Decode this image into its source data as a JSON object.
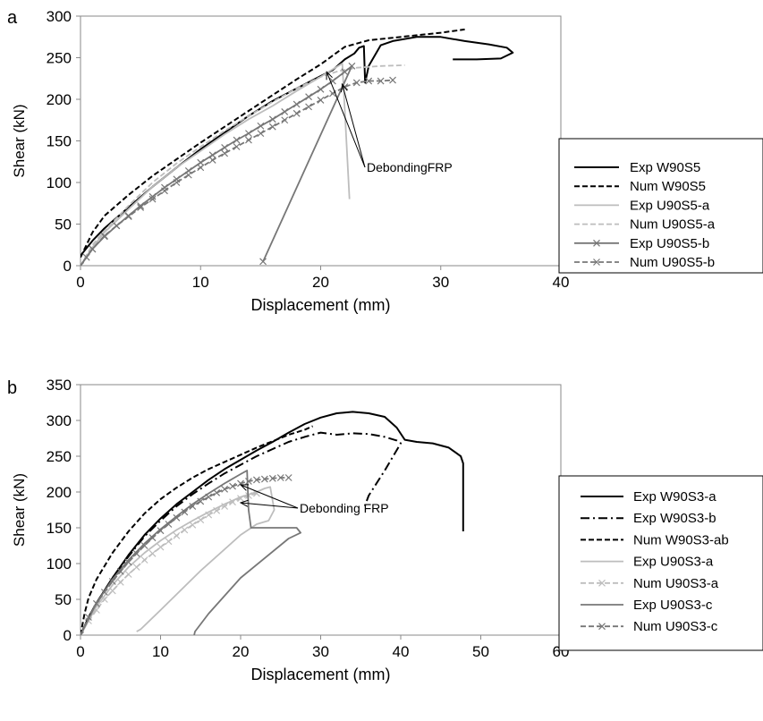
{
  "chart_data": [
    {
      "panel_label": "a",
      "type": "line",
      "xlabel": "Displacement (mm)",
      "ylabel": "Shear (kN)",
      "xlim": [
        0,
        40
      ],
      "ylim": [
        0,
        300
      ],
      "xticks": [
        0,
        10,
        20,
        30,
        40
      ],
      "yticks": [
        0,
        50,
        100,
        150,
        200,
        250,
        300
      ],
      "annotation": {
        "text": "DebondingFRP",
        "targets": [
          [
            20.5,
            233
          ],
          [
            21.8,
            218
          ]
        ]
      },
      "legend_position": "right",
      "series": [
        {
          "name": "Exp W90S5",
          "color": "#000000",
          "dash": "solid",
          "marker": "none",
          "x": [
            0,
            1,
            2,
            4,
            6,
            8,
            10,
            12,
            14,
            16,
            18,
            20,
            21,
            22,
            22.8,
            23.2,
            23.6,
            23.7,
            24,
            25,
            26,
            28,
            30,
            32,
            34,
            35.5,
            36,
            35,
            33,
            31
          ],
          "y": [
            12,
            30,
            45,
            70,
            95,
            118,
            140,
            160,
            180,
            198,
            213,
            228,
            235,
            248,
            255,
            262,
            264,
            220,
            240,
            265,
            270,
            275,
            275,
            270,
            266,
            262,
            256,
            249,
            248,
            248
          ]
        },
        {
          "name": "Num W90S5",
          "color": "#000000",
          "dash": "dashed",
          "marker": "none",
          "x": [
            0,
            0.5,
            1,
            2,
            4,
            6,
            8,
            10,
            12,
            14,
            16,
            18,
            20,
            22,
            24,
            26,
            28,
            30,
            32
          ],
          "y": [
            10,
            25,
            40,
            60,
            85,
            108,
            128,
            148,
            167,
            186,
            205,
            224,
            242,
            263,
            271,
            274,
            277,
            280,
            284
          ]
        },
        {
          "name": "Exp U90S5-a",
          "color": "#bdbdbd",
          "dash": "solid",
          "marker": "none",
          "x": [
            0,
            1,
            2,
            4,
            6,
            8,
            10,
            12,
            14,
            16,
            18,
            20,
            21,
            21.8,
            22.4
          ],
          "y": [
            0,
            22,
            40,
            68,
            95,
            118,
            138,
            158,
            176,
            192,
            210,
            227,
            236,
            243,
            80
          ]
        },
        {
          "name": "Num U90S5-a",
          "color": "#bdbdbd",
          "dash": "dashed",
          "marker": "none",
          "x": [
            0,
            1,
            2,
            4,
            6,
            8,
            10,
            12,
            14,
            16,
            18,
            20,
            21.5,
            23,
            25,
            27
          ],
          "y": [
            0,
            25,
            42,
            72,
            100,
            123,
            143,
            162,
            180,
            197,
            213,
            227,
            234,
            238,
            240,
            241
          ]
        },
        {
          "name": "Exp U90S5-b",
          "color": "#777777",
          "dash": "solid",
          "marker": "x",
          "x": [
            0,
            0.5,
            1,
            2,
            3,
            4,
            5,
            6,
            7,
            8,
            9,
            10,
            11,
            12,
            13,
            14,
            15,
            16,
            17,
            18,
            19,
            20,
            21,
            22,
            22.6,
            15.2
          ],
          "y": [
            0,
            10,
            20,
            35,
            48,
            60,
            72,
            83,
            94,
            104,
            114,
            124,
            133,
            142,
            151,
            159,
            168,
            176,
            185,
            194,
            203,
            212,
            222,
            233,
            240,
            5
          ]
        },
        {
          "name": "Num U90S5-b",
          "color": "#777777",
          "dash": "dashed",
          "marker": "x",
          "x": [
            0,
            1,
            2,
            3,
            4,
            5,
            6,
            7,
            8,
            9,
            10,
            11,
            12,
            13,
            14,
            15,
            16,
            17,
            18,
            19,
            20,
            21,
            22,
            23,
            24,
            25,
            26
          ],
          "y": [
            0,
            20,
            36,
            48,
            59,
            70,
            80,
            90,
            100,
            109,
            118,
            127,
            135,
            143,
            151,
            159,
            167,
            175,
            183,
            191,
            199,
            207,
            215,
            220,
            222,
            222,
            223
          ]
        }
      ]
    },
    {
      "panel_label": "b",
      "type": "line",
      "xlabel": "Displacement (mm)",
      "ylabel": "Shear (kN)",
      "xlim": [
        0,
        60
      ],
      "ylim": [
        0,
        350
      ],
      "xticks": [
        0,
        10,
        20,
        30,
        40,
        50,
        60
      ],
      "yticks": [
        0,
        50,
        100,
        150,
        200,
        250,
        300,
        350
      ],
      "annotation": {
        "text": "Debonding FRP",
        "targets": [
          [
            20,
            210
          ],
          [
            20,
            185
          ]
        ]
      },
      "legend_position": "right",
      "series": [
        {
          "name": "Exp W90S3-a",
          "color": "#000000",
          "dash": "solid",
          "marker": "none",
          "x": [
            0,
            1,
            2,
            4,
            6,
            8,
            10,
            12,
            14,
            16,
            18,
            20,
            22,
            24,
            26,
            28,
            30,
            32,
            34,
            36,
            38,
            39.5,
            40.5,
            42,
            44,
            46,
            47.5,
            47.8,
            47.8
          ],
          "y": [
            0,
            25,
            45,
            80,
            112,
            140,
            163,
            183,
            200,
            217,
            232,
            245,
            258,
            270,
            283,
            295,
            304,
            310,
            312,
            310,
            305,
            290,
            273,
            270,
            268,
            262,
            250,
            240,
            145
          ]
        },
        {
          "name": "Exp W90S3-b",
          "color": "#000000",
          "dash": "dashdot",
          "marker": "none",
          "x": [
            0,
            2,
            4,
            6,
            8,
            10,
            12,
            14,
            16,
            18,
            20,
            22,
            24,
            26,
            28,
            30,
            32,
            34,
            36,
            38,
            39.5,
            40,
            38,
            36,
            35.5
          ],
          "y": [
            0,
            45,
            80,
            110,
            138,
            160,
            180,
            197,
            212,
            226,
            238,
            250,
            260,
            270,
            277,
            283,
            280,
            282,
            281,
            277,
            272,
            268,
            230,
            195,
            180
          ]
        },
        {
          "name": "Num W90S3-ab",
          "color": "#000000",
          "dash": "dashed",
          "marker": "none",
          "x": [
            0,
            0.5,
            1,
            2,
            4,
            6,
            8,
            10,
            12,
            14,
            16,
            18,
            20,
            22,
            24,
            26,
            28,
            29
          ],
          "y": [
            0,
            30,
            52,
            78,
            115,
            145,
            170,
            190,
            206,
            220,
            232,
            242,
            252,
            262,
            271,
            280,
            287,
            292
          ]
        },
        {
          "name": "Exp U90S3-a",
          "color": "#bdbdbd",
          "dash": "solid",
          "marker": "none",
          "x": [
            0,
            2,
            4,
            6,
            8,
            10,
            12,
            14,
            16,
            18,
            20,
            22,
            23,
            23.7,
            24.2,
            23.5,
            22,
            20,
            15,
            10,
            7.5,
            7
          ],
          "y": [
            0,
            40,
            70,
            95,
            115,
            132,
            147,
            160,
            172,
            183,
            193,
            200,
            205,
            207,
            175,
            160,
            155,
            140,
            90,
            35,
            8,
            5
          ]
        },
        {
          "name": "Num U90S3-a",
          "color": "#bdbdbd",
          "dash": "dashed",
          "marker": "x",
          "x": [
            0,
            1,
            2,
            3,
            4,
            5,
            6,
            7,
            8,
            9,
            10,
            11,
            12,
            13,
            14,
            15,
            16,
            17,
            18,
            19,
            20,
            21,
            22
          ],
          "y": [
            0,
            20,
            35,
            50,
            62,
            74,
            85,
            95,
            105,
            114,
            123,
            131,
            139,
            147,
            154,
            161,
            168,
            174,
            180,
            186,
            191,
            195,
            198
          ]
        },
        {
          "name": "Exp U90S3-c",
          "color": "#777777",
          "dash": "solid",
          "marker": "none",
          "x": [
            0,
            2,
            4,
            6,
            8,
            10,
            12,
            14,
            16,
            18,
            20,
            20.8,
            21,
            21.3,
            23,
            25,
            27,
            27.5,
            26,
            20,
            16,
            14.3,
            14.2
          ],
          "y": [
            0,
            45,
            78,
            105,
            128,
            148,
            166,
            183,
            198,
            212,
            225,
            230,
            175,
            150,
            150,
            150,
            150,
            143,
            135,
            80,
            30,
            5,
            0
          ]
        },
        {
          "name": "Num U90S3-c",
          "color": "#777777",
          "dash": "dashed",
          "marker": "x",
          "x": [
            0,
            1,
            2,
            3,
            4,
            5,
            6,
            7,
            8,
            9,
            10,
            11,
            12,
            13,
            14,
            15,
            16,
            17,
            18,
            19,
            20,
            21,
            22,
            23,
            24,
            25,
            26
          ],
          "y": [
            0,
            25,
            44,
            60,
            75,
            89,
            102,
            114,
            125,
            136,
            146,
            155,
            164,
            172,
            180,
            187,
            193,
            199,
            204,
            208,
            212,
            215,
            217,
            218,
            219,
            220,
            220
          ]
        }
      ]
    }
  ]
}
